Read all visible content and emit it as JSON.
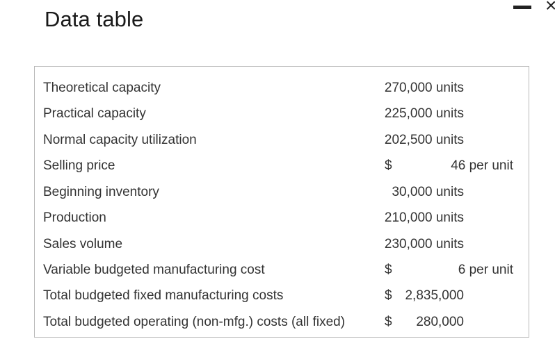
{
  "window": {
    "title": "Data table",
    "close_glyph": "×"
  },
  "table": {
    "rows": [
      {
        "label": "Theoretical capacity",
        "dollar": "",
        "value": "270,000 units"
      },
      {
        "label": "Practical capacity",
        "dollar": "",
        "value": "225,000 units"
      },
      {
        "label": "Normal capacity utilization",
        "dollar": "",
        "value": "202,500 units"
      },
      {
        "label": "Selling price",
        "dollar": "$",
        "value": "46 per unit"
      },
      {
        "label": "Beginning inventory",
        "dollar": "",
        "value": "30,000 units"
      },
      {
        "label": "Production",
        "dollar": "",
        "value": "210,000 units"
      },
      {
        "label": "Sales volume",
        "dollar": "",
        "value": "230,000 units"
      },
      {
        "label": "Variable budgeted manufacturing cost",
        "dollar": "$",
        "value": "6 per unit"
      },
      {
        "label": "Total budgeted fixed manufacturing costs",
        "dollar": "$",
        "value": "2,835,000"
      },
      {
        "label": "Total budgeted operating (non-mfg.) costs (all fixed)",
        "dollar": "$",
        "value": "280,000"
      }
    ]
  },
  "icons": {
    "minimize": "minimize-icon",
    "close": "close-icon"
  }
}
